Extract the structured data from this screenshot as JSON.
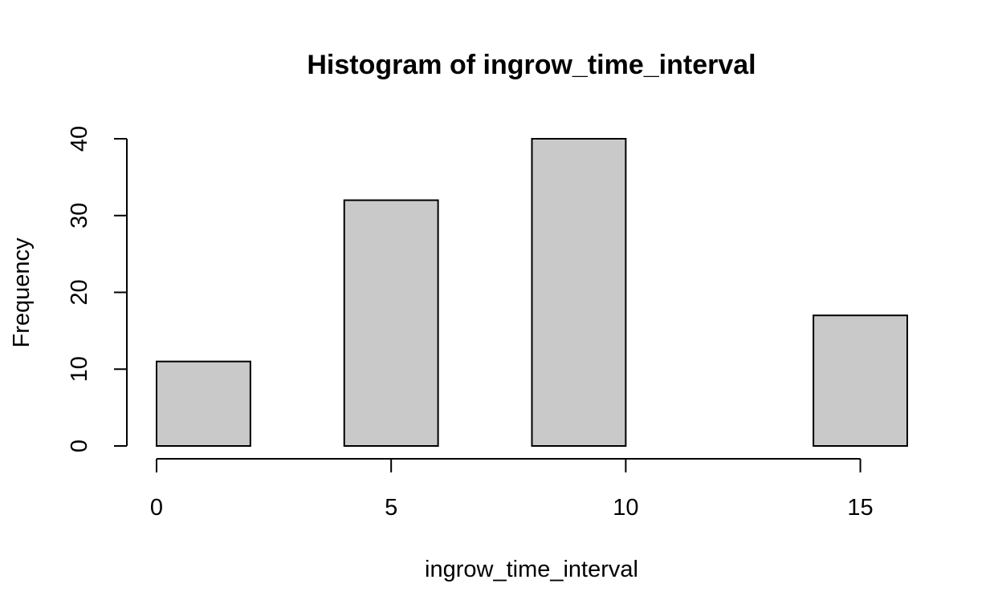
{
  "chart_data": {
    "type": "bar",
    "title": "Histogram of ingrow_time_interval",
    "xlabel": "ingrow_time_interval",
    "ylabel": "Frequency",
    "bins": [
      {
        "start": 0,
        "end": 2,
        "count": 11
      },
      {
        "start": 2,
        "end": 4,
        "count": 0
      },
      {
        "start": 4,
        "end": 6,
        "count": 32
      },
      {
        "start": 6,
        "end": 8,
        "count": 0
      },
      {
        "start": 8,
        "end": 10,
        "count": 40
      },
      {
        "start": 10,
        "end": 12,
        "count": 0
      },
      {
        "start": 12,
        "end": 14,
        "count": 0
      },
      {
        "start": 14,
        "end": 16,
        "count": 17
      }
    ],
    "xlim": [
      0,
      16
    ],
    "ylim": [
      0,
      40
    ],
    "x_ticks": [
      0,
      5,
      10,
      15
    ],
    "y_ticks": [
      0,
      10,
      20,
      30,
      40
    ],
    "bar_fill": "#c9c9c9",
    "grid": false
  }
}
